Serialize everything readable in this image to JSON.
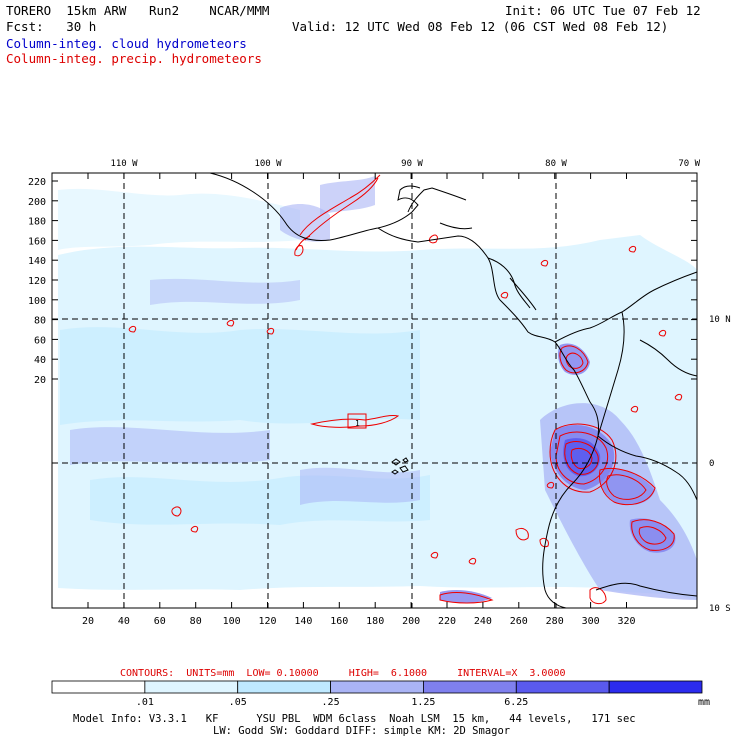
{
  "header": {
    "model_line": "TORERO  15km ARW   Run2    NCAR/MMM",
    "fcst_line": "Fcst:   30 h",
    "init_line": "Init: 06 UTC Tue 07 Feb 12",
    "valid_line": "Valid: 12 UTC Wed 08 Feb 12 (06 CST Wed 08 Feb 12)",
    "field1": "Column-integ. cloud hydrometeors",
    "field2": "Column-integ. precip. hydrometeors",
    "field1_color": "#0000cc",
    "field2_color": "#dd0000"
  },
  "map": {
    "lon_labels": [
      "110 W",
      "100 W",
      "90 W",
      "80 W",
      "70 W"
    ],
    "lat_labels": [
      "10 N",
      "0",
      "10 S"
    ],
    "y_ticks": [
      "220",
      "200",
      "180",
      "160",
      "140",
      "120",
      "100",
      "80",
      "60",
      "40",
      "20"
    ],
    "x_ticks": [
      "20",
      "40",
      "60",
      "80",
      "100",
      "120",
      "140",
      "160",
      "180",
      "200",
      "220",
      "240",
      "260",
      "280",
      "300",
      "320"
    ],
    "box_label": "1"
  },
  "contours": {
    "text": "CONTOURS:  UNITS=mm  LOW= 0.10000     HIGH=  6.1000     INTERVAL=X  3.0000"
  },
  "colorbar": {
    "labels": [
      ".01",
      ".05",
      ".25",
      "1.25",
      "6.25"
    ],
    "unit": "mm",
    "colors": [
      "#ffffff",
      "#dff5ff",
      "#bfe9ff",
      "#aab4f5",
      "#7f80ee",
      "#5a5aee",
      "#2b2bee"
    ]
  },
  "footer": {
    "line1": "Model Info: V3.3.1   KF      YSU PBL  WDM 6class  Noah LSM  15 km,   44 levels,   171 sec",
    "line2": "LW: Godd SW: Goddard DIFF: simple KM: 2D Smagor"
  }
}
